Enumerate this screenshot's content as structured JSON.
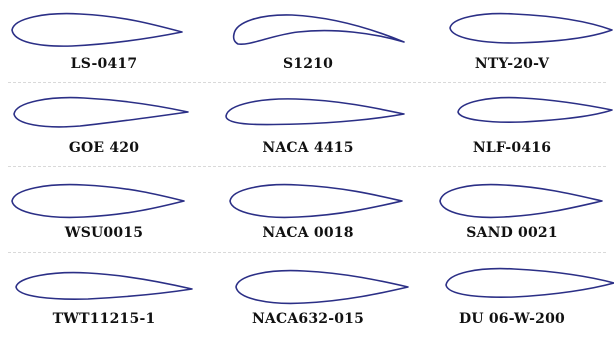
{
  "airfoils": [
    {
      "name": "LS-0417"
    },
    {
      "name": "S1210"
    },
    {
      "name": "NTY-20-V"
    },
    {
      "name": "GOE 420"
    },
    {
      "name": "NACA 4415"
    },
    {
      "name": "NLF-0416"
    },
    {
      "name": "WSU0015"
    },
    {
      "name": "NACA 0018"
    },
    {
      "name": "SAND 0021"
    },
    {
      "name": "TWT11215-1"
    },
    {
      "name": "NACA632-015"
    },
    {
      "name": "DU 06-W-200"
    }
  ],
  "style": {
    "outline_color": "#2b2f86"
  }
}
